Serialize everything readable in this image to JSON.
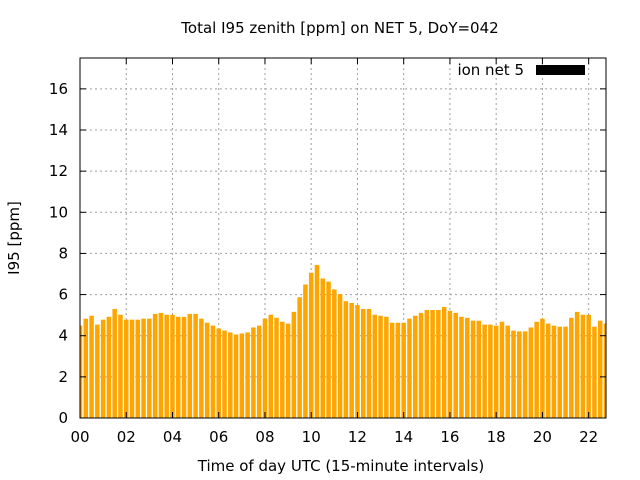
{
  "chart_data": {
    "type": "bar",
    "title": "Total I95 zenith [ppm] on NET 5, DoY=042",
    "xlabel": "Time of day UTC (15-minute intervals)",
    "ylabel": "I95 [ppm]",
    "xlim": [
      0,
      22.75
    ],
    "ylim": [
      0,
      17.5
    ],
    "x_step_hours": 0.25,
    "xticks": [
      0,
      2,
      4,
      6,
      8,
      10,
      12,
      14,
      16,
      18,
      20,
      22
    ],
    "xtick_labels": [
      "00",
      "02",
      "04",
      "06",
      "08",
      "10",
      "12",
      "14",
      "16",
      "18",
      "20",
      "22"
    ],
    "yticks": [
      0,
      2,
      4,
      6,
      8,
      10,
      12,
      14,
      16
    ],
    "ytick_labels": [
      "0",
      "2",
      "4",
      "6",
      "8",
      "10",
      "12",
      "14",
      "16"
    ],
    "grid": true,
    "legend": {
      "position": "top-right",
      "entries": [
        {
          "label": "ion net 5",
          "color": "#000000"
        }
      ]
    },
    "bar_color": "#FFA500",
    "series": [
      {
        "name": "ion net 5",
        "values": [
          4.49,
          4.83,
          4.97,
          4.54,
          4.78,
          4.92,
          5.3,
          5.02,
          4.78,
          4.78,
          4.78,
          4.83,
          4.83,
          5.06,
          5.11,
          5.02,
          5.02,
          4.92,
          4.92,
          5.06,
          5.06,
          4.83,
          4.63,
          4.49,
          4.35,
          4.25,
          4.16,
          4.06,
          4.11,
          4.16,
          4.4,
          4.49,
          4.83,
          5.02,
          4.87,
          4.68,
          4.59,
          5.16,
          5.87,
          6.49,
          7.06,
          7.44,
          6.78,
          6.63,
          6.25,
          6.02,
          5.68,
          5.59,
          5.49,
          5.3,
          5.3,
          5.02,
          4.97,
          4.92,
          4.63,
          4.63,
          4.63,
          4.83,
          4.97,
          5.11,
          5.25,
          5.25,
          5.25,
          5.4,
          5.21,
          5.11,
          4.92,
          4.87,
          4.73,
          4.73,
          4.54,
          4.54,
          4.49,
          4.68,
          4.49,
          4.25,
          4.21,
          4.21,
          4.4,
          4.68,
          4.83,
          4.59,
          4.49,
          4.44,
          4.44,
          4.87,
          5.16,
          5.02,
          5.02,
          4.44,
          4.73,
          4.59
        ]
      }
    ]
  }
}
